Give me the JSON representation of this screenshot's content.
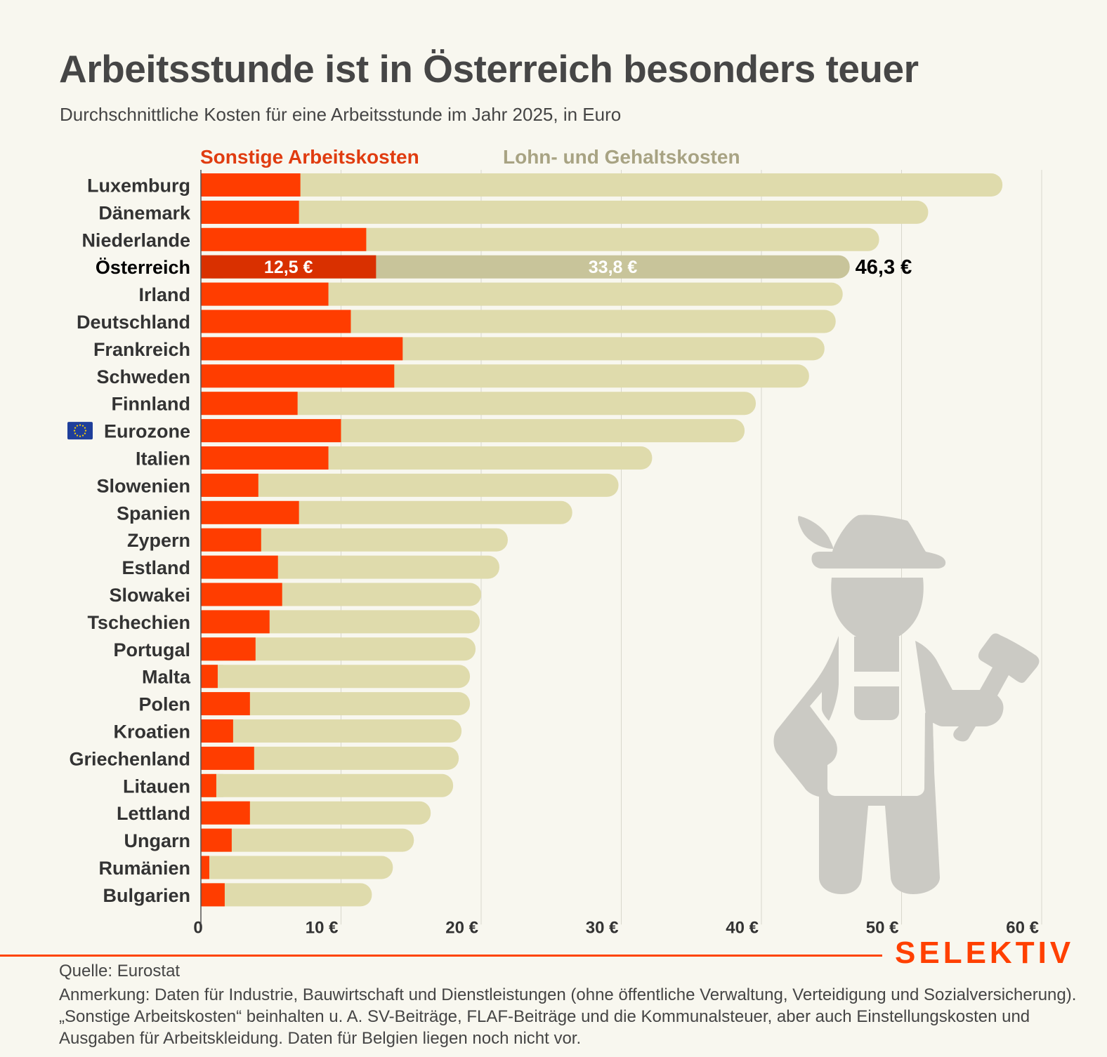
{
  "header": {
    "title": "Arbeitsstunde ist in Österreich besonders teuer",
    "subtitle": "Durchschnittliche Kosten für eine Arbeitsstunde im Jahr 2025, in Euro"
  },
  "chart_data": {
    "type": "bar",
    "orientation": "horizontal",
    "stacked": true,
    "title": "Arbeitsstunde ist in Österreich besonders teuer",
    "subtitle": "Durchschnittliche Kosten für eine Arbeitsstunde im Jahr 2025, in Euro",
    "xlabel": "",
    "ylabel": "",
    "xlim": [
      0,
      60
    ],
    "xticks": [
      0,
      10,
      20,
      30,
      40,
      50,
      60
    ],
    "xtick_labels": [
      "0",
      "10 €",
      "20 €",
      "30 €",
      "40 €",
      "50 €",
      "60 €"
    ],
    "grid": true,
    "legend_position": "top",
    "highlight": "Österreich",
    "highlight_labels": {
      "other": "12,5 €",
      "wages": "33,8 €",
      "total": "46,3 €"
    },
    "colors": {
      "other": "#ff3d00",
      "wages": "#dfdbac",
      "other_highlight": "#d93000",
      "wages_highlight": "#c8c49a",
      "legend_other": "#e03c10",
      "legend_wages": "#a8a383",
      "grid": "#d9d7cc",
      "illustration": "#cbcac4"
    },
    "categories": [
      "Luxemburg",
      "Dänemark",
      "Niederlande",
      "Österreich",
      "Irland",
      "Deutschland",
      "Frankreich",
      "Schweden",
      "Finnland",
      "Eurozone",
      "Italien",
      "Slowenien",
      "Spanien",
      "Zypern",
      "Estland",
      "Slowakei",
      "Tschechien",
      "Portugal",
      "Malta",
      "Polen",
      "Kroatien",
      "Griechenland",
      "Litauen",
      "Lettland",
      "Ungarn",
      "Rumänien",
      "Bulgarien"
    ],
    "series": [
      {
        "name": "Sonstige Arbeitskosten",
        "values": [
          7.1,
          7.0,
          11.8,
          12.5,
          9.1,
          10.7,
          14.4,
          13.8,
          6.9,
          10.0,
          9.1,
          4.1,
          7.0,
          4.3,
          5.5,
          5.8,
          4.9,
          3.9,
          1.2,
          3.5,
          2.3,
          3.8,
          1.1,
          3.5,
          2.2,
          0.6,
          1.7
        ]
      },
      {
        "name": "Lohn- und Gehaltskosten",
        "values": [
          50.1,
          44.9,
          36.6,
          33.8,
          36.7,
          34.6,
          30.1,
          29.6,
          32.7,
          28.8,
          23.1,
          25.7,
          19.5,
          17.6,
          15.8,
          14.2,
          15.0,
          15.7,
          18.0,
          15.7,
          16.3,
          14.6,
          16.9,
          12.9,
          13.0,
          13.1,
          10.5
        ]
      }
    ],
    "totals": [
      57.2,
      51.9,
      48.4,
      46.3,
      45.8,
      45.3,
      44.5,
      43.4,
      39.6,
      38.8,
      32.2,
      29.8,
      26.5,
      21.9,
      21.3,
      20.0,
      19.9,
      19.6,
      19.2,
      19.2,
      18.6,
      18.4,
      18.0,
      16.4,
      15.2,
      13.7,
      12.2
    ],
    "flag_icons": {
      "Eurozone": "eu-flag-icon"
    }
  },
  "footer": {
    "brand": "SELEKTIV",
    "source": "Quelle: Eurostat",
    "note": "Anmerkung: Daten für Industrie, Bauwirtschaft und Dienstleistungen (ohne öffentliche Verwaltung, Verteidigung und Sozialversicherung). „Sonstige Arbeitskosten“ beinhalten u. A. SV-Beiträge, FLAF-Beiträge und die Kommunalsteuer, aber auch Einstellungskosten und Ausgaben für Arbeitskleidung. Daten für Belgien liegen noch nicht vor."
  }
}
